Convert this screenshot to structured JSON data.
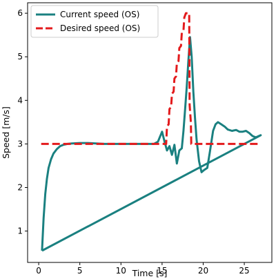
{
  "chart_data": {
    "type": "line",
    "title": "",
    "xlabel": "Time [s]",
    "ylabel": "Speed [m/s]",
    "xlim": [
      -1.35,
      28.35
    ],
    "ylim": [
      0.28,
      6.24
    ],
    "xticks": [
      0,
      5,
      10,
      15,
      20,
      25
    ],
    "yticks": [
      1,
      2,
      3,
      4,
      5,
      6
    ],
    "grid": false,
    "legend_position": "upper-left",
    "series": [
      {
        "name": "Current speed (OS)",
        "color": "#1a8080",
        "style": "solid",
        "x": [
          0.4,
          0.6,
          0.8,
          1.0,
          1.2,
          1.5,
          1.8,
          2.2,
          2.6,
          3.0,
          3.5,
          4.0,
          5.0,
          6.0,
          8.0,
          10.0,
          12.0,
          13.0,
          14.0,
          14.5,
          15.0,
          15.3,
          15.6,
          15.9,
          16.2,
          16.5,
          16.8,
          17.1,
          17.4,
          17.6,
          17.8,
          18.0,
          18.2,
          18.4,
          18.6,
          18.8,
          19.0,
          19.2,
          19.5,
          19.8,
          20.1,
          20.5,
          20.8,
          21.2,
          21.5,
          21.8,
          22.2,
          22.6,
          23.0,
          23.5,
          24.0,
          24.4,
          24.8,
          25.2,
          25.6,
          26.0,
          26.4,
          27.0,
          0.4
        ],
        "y": [
          0.55,
          1.3,
          1.85,
          2.2,
          2.45,
          2.65,
          2.78,
          2.88,
          2.95,
          2.98,
          3.0,
          3.01,
          3.02,
          3.02,
          3.0,
          3.0,
          3.0,
          3.0,
          3.0,
          3.05,
          3.28,
          3.05,
          2.85,
          2.95,
          2.75,
          2.98,
          2.55,
          2.85,
          2.9,
          3.3,
          3.8,
          4.3,
          4.9,
          5.45,
          5.0,
          4.2,
          3.6,
          3.1,
          2.6,
          2.35,
          2.4,
          2.45,
          2.8,
          3.3,
          3.45,
          3.5,
          3.45,
          3.4,
          3.33,
          3.3,
          3.32,
          3.28,
          3.28,
          3.3,
          3.25,
          3.18,
          3.15,
          3.2,
          0.55
        ]
      },
      {
        "name": "Desired speed (OS)",
        "color": "#e31a1c",
        "style": "dashed",
        "x": [
          0.3,
          15.5,
          15.6,
          15.8,
          15.9,
          16.1,
          16.2,
          16.4,
          16.5,
          16.7,
          16.8,
          17.0,
          17.1,
          17.3,
          17.4,
          17.6,
          17.7,
          17.9,
          18.3,
          18.35,
          18.5,
          18.55,
          27.0
        ],
        "y": [
          3.0,
          3.0,
          3.4,
          3.45,
          3.8,
          3.85,
          4.15,
          4.2,
          4.5,
          4.55,
          4.85,
          4.9,
          5.2,
          5.25,
          5.55,
          5.6,
          5.9,
          6.0,
          6.0,
          3.9,
          3.5,
          3.0,
          3.0
        ]
      }
    ]
  }
}
